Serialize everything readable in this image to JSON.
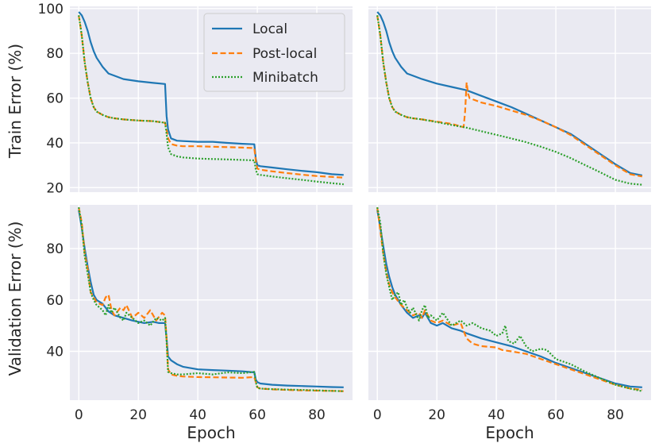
{
  "chart_data": {
    "type": "line",
    "layout": "2x2 grid, shared x axis per column, shared y axis per row",
    "xlabel": "Epoch",
    "xticks": [
      0,
      20,
      40,
      60,
      80
    ],
    "xlim": [
      -3,
      92
    ],
    "series_styles": [
      {
        "name": "Local",
        "color": "#1f77b4",
        "dash": "solid"
      },
      {
        "name": "Post-local",
        "color": "#ff7f0e",
        "dash": "dashed"
      },
      {
        "name": "Minibatch",
        "color": "#2ca02c",
        "dash": "dotted"
      }
    ],
    "legend": {
      "location": "top-right of top-left panel",
      "entries": [
        "Local",
        "Post-local",
        "Minibatch"
      ]
    },
    "rows": [
      {
        "ylabel": "Train Error (%)",
        "ylim": [
          18,
          101
        ],
        "yticks": [
          20,
          40,
          60,
          80,
          100
        ]
      },
      {
        "ylabel": "Validation Error (%)",
        "ylim": [
          21,
          97
        ],
        "yticks": [
          40,
          60,
          80
        ]
      }
    ],
    "panels": [
      {
        "row": 0,
        "col": 0,
        "series": [
          {
            "name": "Local",
            "x": [
              0,
              1,
              2,
              3,
              4,
              5,
              6,
              8,
              10,
              12,
              15,
              20,
              25,
              29,
              29.5,
              30,
              31,
              33,
              35,
              40,
              45,
              50,
              55,
              59,
              59.5,
              60,
              61,
              65,
              70,
              75,
              80,
              85,
              89
            ],
            "y": [
              98.5,
              97,
              94,
              90,
              85,
              81,
              78,
              74,
              71,
              70,
              68.5,
              67.5,
              66.8,
              66.3,
              52,
              46,
              42,
              41,
              40.8,
              40.5,
              40.5,
              40,
              39.6,
              39.4,
              33,
              30,
              29.6,
              29,
              28.2,
              27.5,
              26.9,
              26,
              25.7
            ]
          },
          {
            "name": "Post-local",
            "x": [
              0,
              1,
              2,
              3,
              4,
              5,
              6,
              8,
              10,
              12,
              15,
              20,
              25,
              29,
              29.5,
              30,
              31,
              33,
              35,
              40,
              45,
              50,
              55,
              59,
              59.5,
              60,
              61,
              65,
              70,
              75,
              80,
              85,
              89
            ],
            "y": [
              97,
              88,
              76,
              67,
              60,
              56,
              54,
              52.5,
              51.5,
              51,
              50.5,
              50,
              49.7,
              49,
              46,
              42,
              39.5,
              38.8,
              38.5,
              38.5,
              38.3,
              38.1,
              37.9,
              37.7,
              32,
              28.5,
              28,
              27.3,
              26.5,
              25.8,
              25.2,
              24.8,
              24.5
            ]
          },
          {
            "name": "Minibatch",
            "x": [
              0,
              1,
              2,
              3,
              4,
              5,
              6,
              8,
              10,
              12,
              15,
              20,
              25,
              29,
              29.5,
              30,
              31,
              33,
              35,
              40,
              45,
              50,
              55,
              59,
              59.5,
              60,
              61,
              65,
              70,
              75,
              80,
              85,
              89
            ],
            "y": [
              97,
              88,
              76,
              67,
              60,
              56,
              54,
              52.5,
              51.5,
              51,
              50.5,
              50,
              49.7,
              49,
              44,
              38,
              35,
              34,
              33.5,
              33,
              32.8,
              32.6,
              32.4,
              32.2,
              28,
              26,
              25.7,
              25,
              24.2,
              23.5,
              22.7,
              22,
              21.5
            ]
          }
        ]
      },
      {
        "row": 0,
        "col": 1,
        "series": [
          {
            "name": "Local",
            "x": [
              0,
              1,
              2,
              3,
              4,
              5,
              6,
              8,
              10,
              12,
              15,
              20,
              25,
              30,
              35,
              40,
              45,
              50,
              55,
              60,
              65,
              70,
              75,
              80,
              85,
              89
            ],
            "y": [
              98.5,
              97,
              94,
              90,
              85,
              81,
              78,
              74,
              71,
              70,
              68.5,
              66.5,
              65,
              63.5,
              61,
              58.5,
              56,
              53,
              50,
              47,
              44,
              39.5,
              35,
              30.5,
              26.5,
              25.5
            ]
          },
          {
            "name": "Post-local",
            "x": [
              0,
              1,
              2,
              3,
              4,
              5,
              6,
              8,
              10,
              12,
              15,
              20,
              25,
              29,
              29.5,
              30,
              30.5,
              31,
              33,
              35,
              40,
              45,
              50,
              55,
              60,
              65,
              70,
              75,
              80,
              85,
              89
            ],
            "y": [
              97,
              88,
              76,
              67,
              60,
              56,
              54,
              52.5,
              51.5,
              51,
              50.5,
              49.5,
              48.5,
              47,
              54,
              67,
              62,
              60,
              59,
              58,
              56.5,
              54.5,
              52.5,
              50,
              47,
              43.5,
              39,
              34.5,
              30,
              26,
              25
            ]
          },
          {
            "name": "Minibatch",
            "x": [
              0,
              1,
              2,
              3,
              4,
              5,
              6,
              8,
              10,
              12,
              15,
              20,
              25,
              30,
              35,
              40,
              45,
              50,
              55,
              60,
              65,
              70,
              75,
              80,
              85,
              89
            ],
            "y": [
              97,
              88,
              76,
              67,
              60,
              56,
              54,
              52.5,
              51.5,
              51,
              50.5,
              49.3,
              48,
              46.8,
              45.2,
              43.6,
              42,
              40.3,
              38.3,
              36,
              33.2,
              30,
              26.8,
              23.5,
              21.8,
              21.3
            ]
          }
        ]
      },
      {
        "row": 1,
        "col": 0,
        "series": [
          {
            "name": "Local",
            "x": [
              0,
              1,
              2,
              3,
              4,
              5,
              6,
              8,
              9,
              10,
              12,
              15,
              18,
              20,
              22,
              25,
              27,
              29,
              29.5,
              30,
              31,
              33,
              35,
              40,
              45,
              50,
              55,
              59,
              59.5,
              60,
              61,
              65,
              70,
              75,
              80,
              85,
              89
            ],
            "y": [
              95,
              88,
              80,
              73,
              67,
              62,
              60,
              58.5,
              57,
              55.5,
              54,
              53,
              52,
              51.5,
              51,
              51.5,
              51,
              51,
              45,
              38,
              36.5,
              35,
              34,
              33,
              32.7,
              32.5,
              32.2,
              31.8,
              29,
              28,
              27.5,
              27,
              26.7,
              26.5,
              26.3,
              26.1,
              26
            ]
          },
          {
            "name": "Post-local",
            "x": [
              0,
              1,
              2,
              3,
              4,
              5,
              6,
              8,
              9,
              10,
              11,
              12,
              14,
              15,
              16,
              18,
              20,
              22,
              24,
              26,
              28,
              29,
              29.5,
              30,
              31,
              33,
              35,
              40,
              45,
              50,
              55,
              59,
              59.5,
              60,
              61,
              65,
              70,
              75,
              80,
              85,
              89
            ],
            "y": [
              96,
              90,
              78,
              72,
              63,
              61,
              59,
              58,
              61,
              62,
              56,
              54,
              57,
              56,
              58,
              53,
              55,
              53,
              56,
              52,
              55,
              54,
              45,
              33,
              31,
              30.5,
              30.2,
              30,
              29.9,
              29.8,
              29.7,
              30,
              28,
              26,
              25.5,
              25.2,
              25,
              24.8,
              24.7,
              24.6,
              24.5
            ]
          },
          {
            "name": "Minibatch",
            "x": [
              0,
              1,
              2,
              3,
              4,
              5,
              6,
              8,
              9,
              10,
              11,
              12,
              14,
              15,
              16,
              18,
              20,
              22,
              24,
              26,
              28,
              29,
              29.5,
              30,
              31,
              33,
              35,
              40,
              45,
              50,
              55,
              59,
              59.5,
              60,
              61,
              65,
              70,
              75,
              80,
              85,
              89
            ],
            "y": [
              96,
              89,
              77,
              70,
              63,
              60,
              58,
              56,
              54,
              58,
              55,
              57,
              53,
              52,
              55,
              53,
              51,
              52,
              50,
              53,
              52,
              53,
              44,
              32,
              31.5,
              31,
              31,
              31.5,
              31,
              31.8,
              31.5,
              32,
              28,
              25.8,
              25.5,
              25.3,
              25.1,
              25,
              24.8,
              24.6,
              24.5
            ]
          }
        ]
      },
      {
        "row": 1,
        "col": 1,
        "series": [
          {
            "name": "Local",
            "x": [
              0,
              1,
              2,
              3,
              4,
              5,
              6,
              8,
              10,
              12,
              14,
              15,
              16,
              18,
              20,
              22,
              25,
              28,
              30,
              35,
              40,
              45,
              50,
              55,
              60,
              65,
              70,
              75,
              80,
              85,
              89
            ],
            "y": [
              95,
              88,
              81,
              74,
              69,
              65,
              62,
              58,
              55,
              53,
              54,
              53,
              55,
              51,
              50,
              51,
              49,
              48,
              47,
              45,
              43.5,
              42,
              40,
              38,
              35.5,
              33.5,
              31.5,
              29.5,
              27.5,
              26.3,
              26
            ]
          },
          {
            "name": "Post-local",
            "x": [
              0,
              1,
              2,
              3,
              4,
              5,
              6,
              8,
              10,
              12,
              14,
              15,
              16,
              18,
              20,
              22,
              25,
              28,
              29,
              30,
              32,
              35,
              40,
              42,
              45,
              50,
              55,
              60,
              65,
              70,
              75,
              80,
              85,
              89
            ],
            "y": [
              96,
              87,
              78,
              71,
              66,
              63,
              61,
              58,
              56,
              54,
              55,
              53,
              56,
              52,
              51,
              52,
              50,
              51,
              48,
              45,
              43,
              42,
              41.5,
              40.5,
              40,
              39,
              37,
              35,
              33,
              31,
              29,
              27,
              25.5,
              25
            ]
          },
          {
            "name": "Minibatch",
            "x": [
              0,
              1,
              2,
              3,
              4,
              5,
              6,
              7,
              8,
              9,
              10,
              11,
              12,
              14,
              15,
              16,
              17,
              18,
              20,
              22,
              25,
              28,
              30,
              32,
              35,
              38,
              40,
              42,
              43,
              44,
              46,
              48,
              50,
              52,
              55,
              57,
              60,
              65,
              70,
              75,
              80,
              85,
              89
            ],
            "y": [
              96,
              90,
              78,
              70,
              65,
              60,
              62,
              63,
              58,
              60,
              57,
              55,
              57,
              52,
              56,
              58,
              53,
              54,
              52,
              55,
              50,
              52,
              50,
              51,
              49,
              48,
              46,
              47,
              50,
              44,
              43,
              46,
              42,
              40,
              41,
              40.5,
              37,
              35,
              32,
              29.5,
              27,
              25.5,
              24.5
            ]
          }
        ]
      }
    ]
  }
}
